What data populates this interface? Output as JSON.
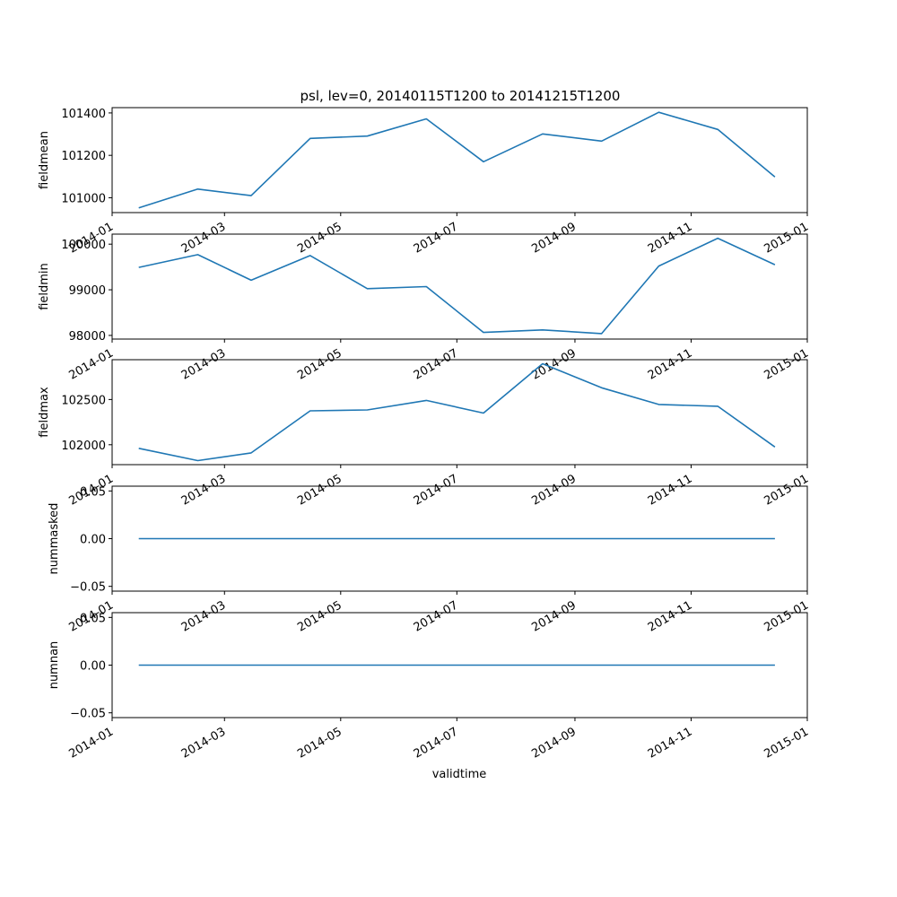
{
  "chart_data": {
    "type": "line",
    "title": "psl, lev=0, 20140115T1200 to 20141215T1200",
    "xlabel": "validtime",
    "x": [
      "2014-01-15",
      "2014-02-15",
      "2014-03-15",
      "2014-04-15",
      "2014-05-15",
      "2014-06-15",
      "2014-07-15",
      "2014-08-15",
      "2014-09-15",
      "2014-10-15",
      "2014-11-15",
      "2014-12-15"
    ],
    "x_range": [
      "2014-01-01",
      "2015-01-01"
    ],
    "x_ticks": [
      "2014-01-01",
      "2014-03-01",
      "2014-05-01",
      "2014-07-01",
      "2014-09-01",
      "2014-11-01",
      "2015-01-01"
    ],
    "x_tick_labels": [
      "2014-01",
      "2014-03",
      "2014-05",
      "2014-07",
      "2014-09",
      "2014-11",
      "2015-01"
    ],
    "line_color": "#1f77b4",
    "grid": false,
    "legend": "none",
    "panels": [
      {
        "ylabel": "fieldmean",
        "values": [
          100952,
          101041,
          101010,
          101280,
          101291,
          101372,
          101170,
          101301,
          101267,
          101403,
          101322,
          101098
        ],
        "ylim": [
          100930,
          101425
        ],
        "yticks": [
          101000,
          101200,
          101400
        ],
        "ytick_labels": [
          "101000",
          "101200",
          "101400"
        ]
      },
      {
        "ylabel": "fieldmin",
        "values": [
          99490,
          99770,
          99210,
          99750,
          99025,
          99070,
          98065,
          98120,
          98040,
          99520,
          100130,
          99550
        ],
        "ylim": [
          97920,
          100220
        ],
        "yticks": [
          98000,
          99000,
          100000
        ],
        "ytick_labels": [
          "98000",
          "99000",
          "100000"
        ]
      },
      {
        "ylabel": "fieldmax",
        "values": [
          101960,
          101825,
          101910,
          102375,
          102385,
          102490,
          102350,
          102895,
          102630,
          102445,
          102425,
          101975
        ],
        "ylim": [
          101780,
          102940
        ],
        "yticks": [
          102000,
          102500
        ],
        "ytick_labels": [
          "102000",
          "102500"
        ]
      },
      {
        "ylabel": "nummasked",
        "values": [
          0,
          0,
          0,
          0,
          0,
          0,
          0,
          0,
          0,
          0,
          0,
          0
        ],
        "ylim": [
          -0.055,
          0.055
        ],
        "yticks": [
          -0.05,
          0,
          0.05
        ],
        "ytick_labels": [
          "−0.05",
          "0.00",
          "0.05"
        ]
      },
      {
        "ylabel": "numnan",
        "values": [
          0,
          0,
          0,
          0,
          0,
          0,
          0,
          0,
          0,
          0,
          0,
          0
        ],
        "ylim": [
          -0.055,
          0.055
        ],
        "yticks": [
          -0.05,
          0,
          0.05
        ],
        "ytick_labels": [
          "−0.05",
          "0.00",
          "0.05"
        ]
      }
    ]
  }
}
